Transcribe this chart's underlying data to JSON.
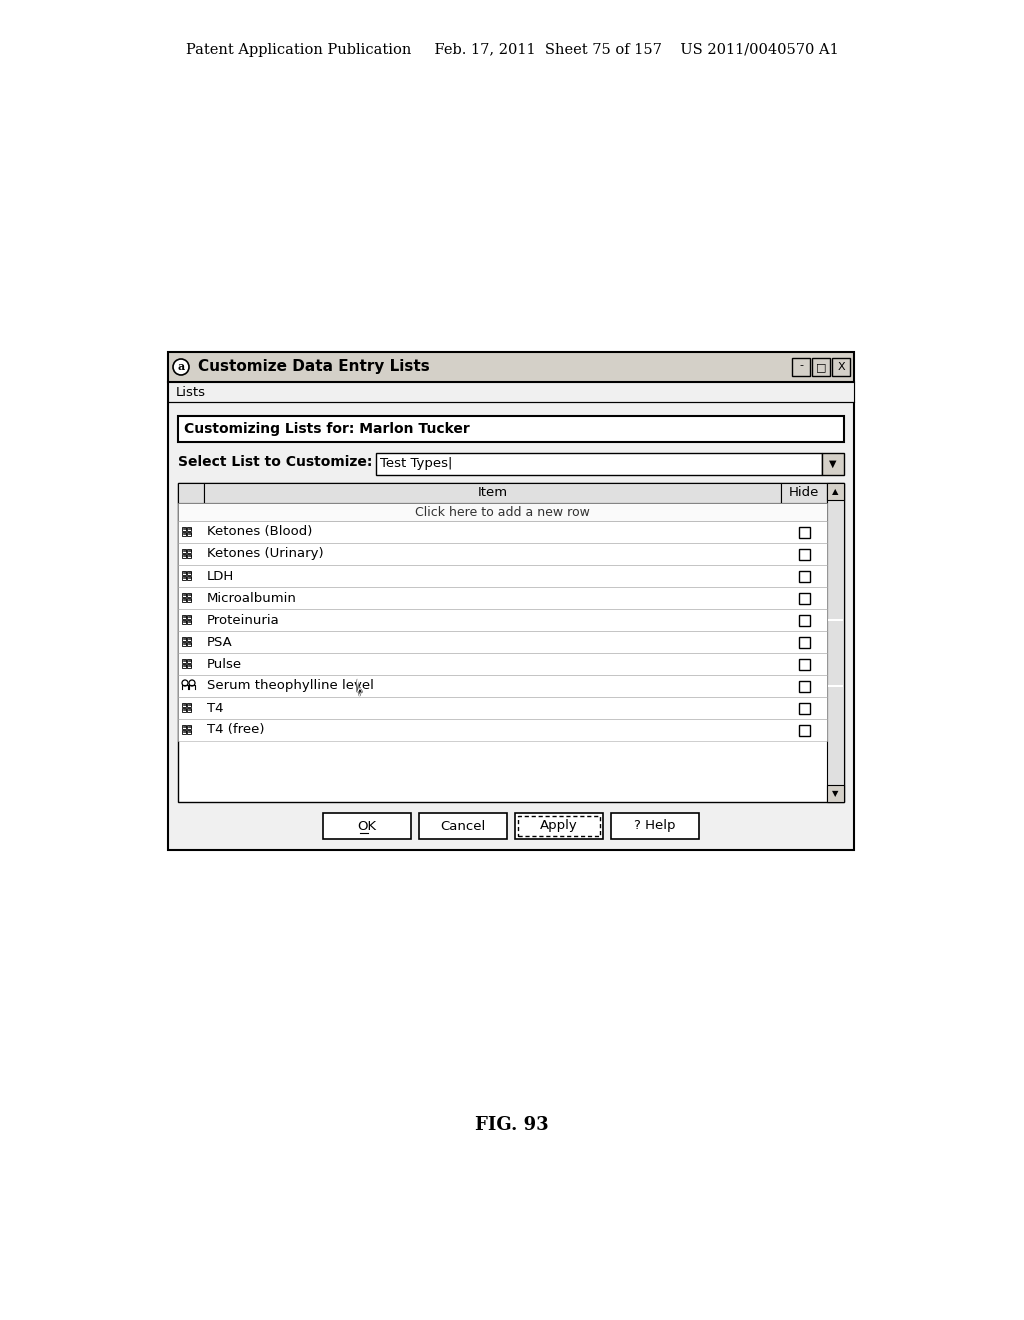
{
  "bg_color": "#ffffff",
  "header_line1": "Patent Application Publication     Feb. 17, 2011  Sheet 75 of 157    US 2011/0040570 A1",
  "figure_label": "FIG. 93",
  "dialog": {
    "title": "Customize Data Entry Lists",
    "menu_item": "Lists",
    "customizing_label": "Customizing Lists for: Marlon Tucker",
    "select_label": "Select List to Customize:",
    "dropdown_value": "Test Types|",
    "add_row_text": "Click here to add a new row",
    "items": [
      "Ketones (Blood)",
      "Ketones (Urinary)",
      "LDH",
      "Microalbumin",
      "Proteinuria",
      "PSA",
      "Pulse",
      "Serum theophylline level",
      "T4",
      "T4 (free)"
    ],
    "special_icon_item": "Serum theophylline level",
    "buttons": [
      "OK",
      "Cancel",
      "Apply",
      "? Help"
    ],
    "apply_is_default": true
  }
}
